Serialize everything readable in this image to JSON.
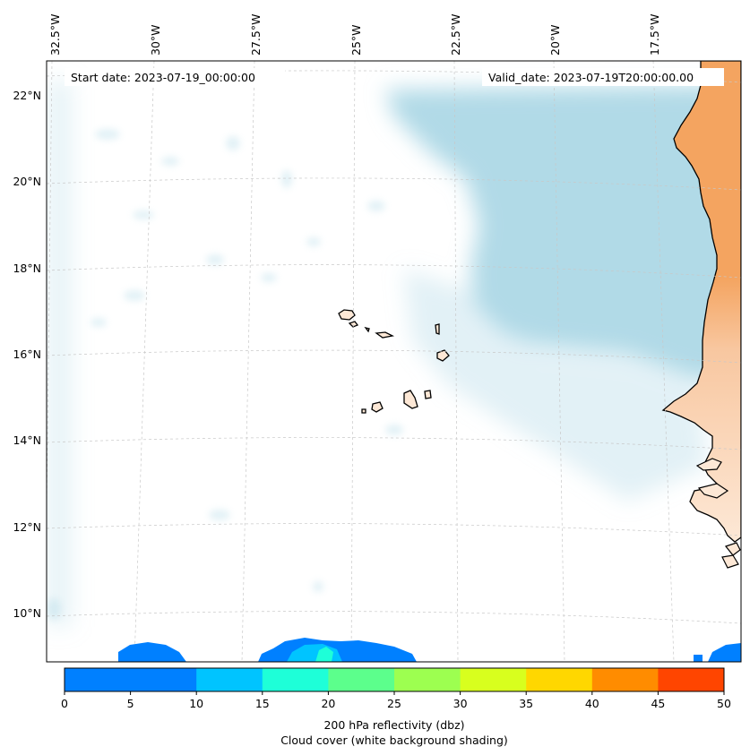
{
  "map": {
    "start_date": "Start date: 2023-07-19_00:00:00",
    "valid_date": "Valid_date: 2023-07-19T20:00:00.00",
    "lon_labels": [
      "32.5°W",
      "30°W",
      "27.5°W",
      "25°W",
      "22.5°W",
      "20°W",
      "17.5°W"
    ],
    "lat_labels": [
      "22°N",
      "20°N",
      "18°N",
      "16°N",
      "14°N",
      "12°N",
      "10°N"
    ]
  },
  "colorbar": {
    "title_line1": "200 hPa reflectivity (dbz)",
    "title_line2": "Cloud cover (white background shading)",
    "ticks": [
      "0",
      "5",
      "10",
      "15",
      "20",
      "25",
      "30",
      "35",
      "40",
      "45",
      "50"
    ],
    "colors": [
      "#0080ff",
      "#00c4ff",
      "#1effd8",
      "#5cff8c",
      "#9dff50",
      "#d8ff1e",
      "#ffd700",
      "#ff8c00",
      "#ff4500",
      "#ff4500"
    ]
  },
  "colors": {
    "cloud": "#add8e6",
    "land": "#f4a460",
    "reflectivity_low": "#0080ff",
    "reflectivity_mid": "#00c4ff",
    "reflectivity_cyan": "#1effd8"
  }
}
